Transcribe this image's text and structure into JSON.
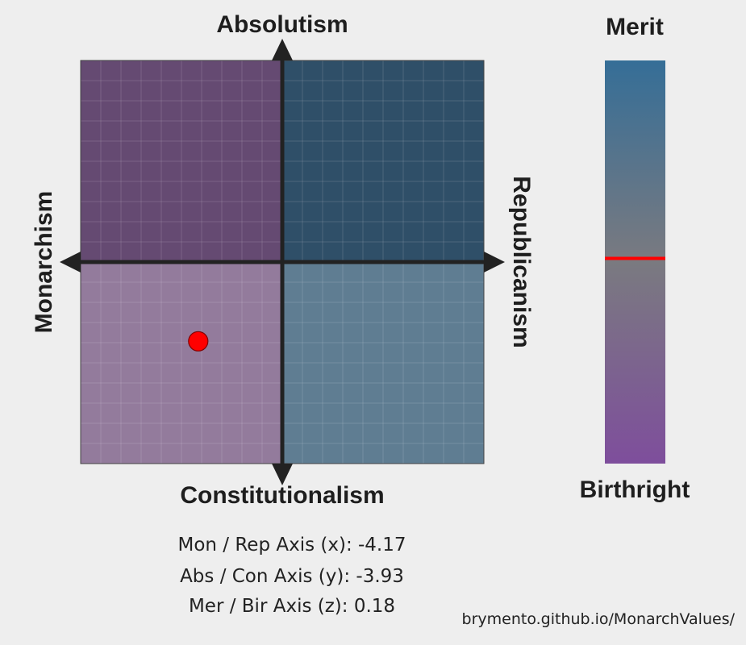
{
  "axes": {
    "top": "Absolutism",
    "bottom": "Constitutionalism",
    "left": "Monarchism",
    "right": "Republicanism",
    "z_top": "Merit",
    "z_bottom": "Birthright"
  },
  "scores": {
    "x_text": "Mon / Rep Axis (x): -4.17",
    "y_text": "Abs / Con Axis (y): -3.93",
    "z_text": "Mer / Bir Axis (z): 0.18"
  },
  "url": "brymento.github.io/MonarchValues/",
  "colors": {
    "quadrant_top_left": "#654a72",
    "quadrant_top_right": "#2f4f68",
    "quadrant_bottom_left": "#937b9c",
    "quadrant_bottom_right": "#5f7d92",
    "z_top": "#356e97",
    "z_mid": "#7a7a80",
    "z_bottom": "#7e4e9c",
    "marker": "#ff0000",
    "axis": "#222222"
  },
  "chart_data": [
    {
      "type": "scatter",
      "title": "",
      "xlabel_left": "Monarchism",
      "xlabel_right": "Republicanism",
      "ylabel_top": "Absolutism",
      "ylabel_bottom": "Constitutionalism",
      "xlim": [
        -10,
        10
      ],
      "ylim": [
        -10,
        10
      ],
      "grid": true,
      "points": [
        {
          "x": -4.17,
          "y": -3.93
        }
      ]
    },
    {
      "type": "bar",
      "title": "",
      "orientation": "vertical-gradient",
      "label_top": "Merit",
      "label_bottom": "Birthright",
      "ylim": [
        -10,
        10
      ],
      "values": [
        0.18
      ]
    }
  ]
}
